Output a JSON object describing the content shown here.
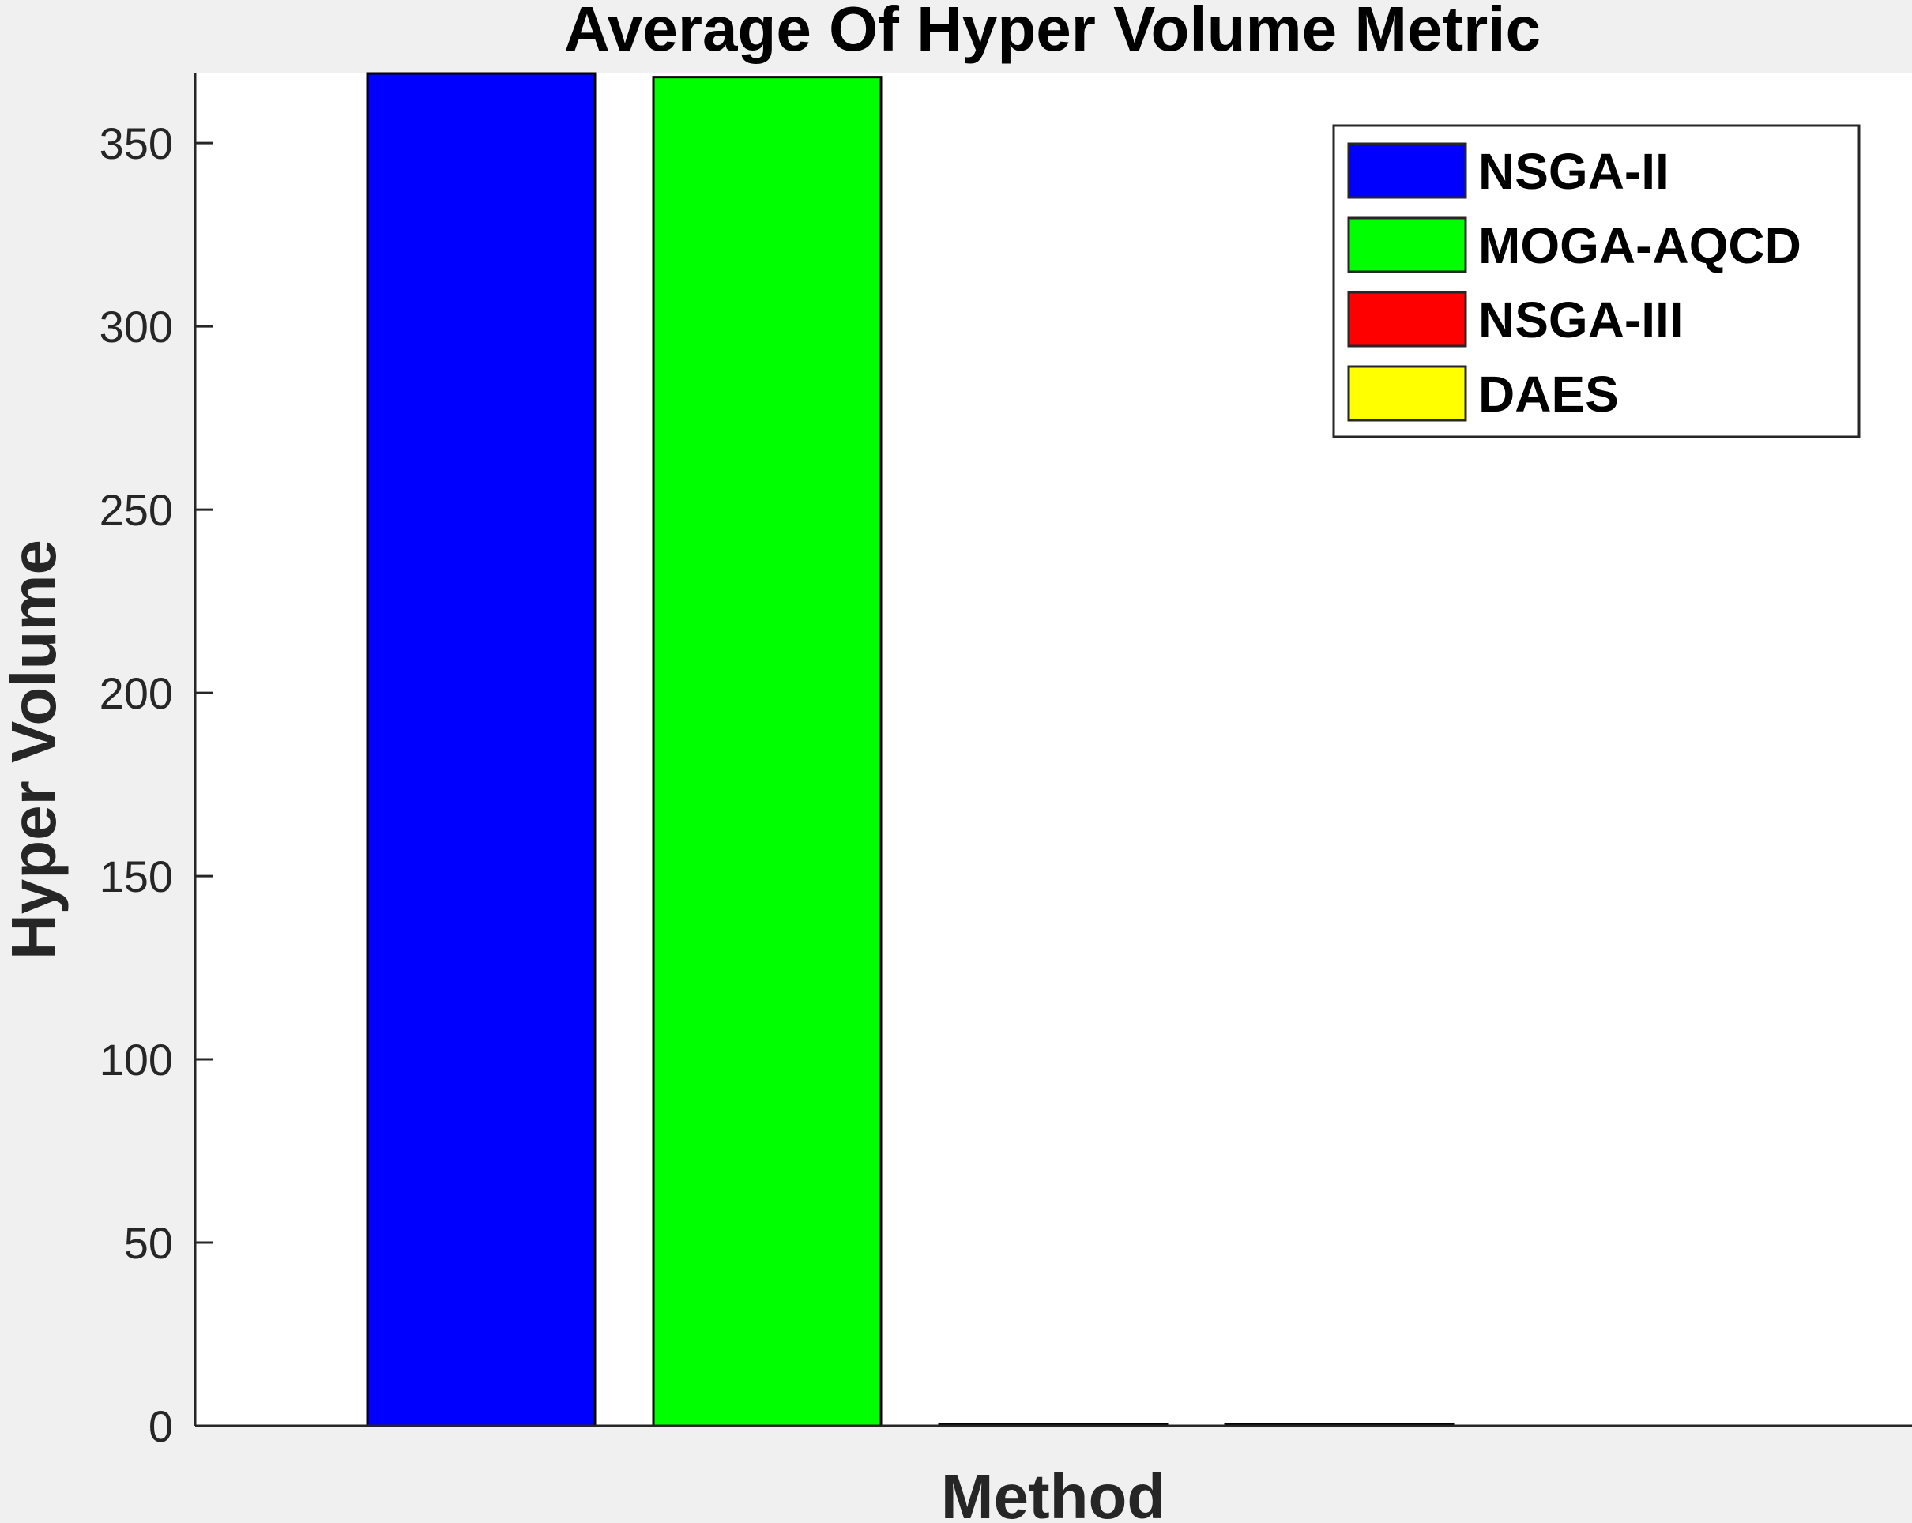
{
  "chart_data": {
    "type": "bar",
    "title": "Average Of Hyper Volume Metric",
    "xlabel": "Method",
    "ylabel": "Hyper Volume",
    "ylim": [
      0,
      369
    ],
    "yticks": [
      0,
      50,
      100,
      150,
      200,
      250,
      300,
      350
    ],
    "grid": false,
    "legend_position": "top-right",
    "series": [
      {
        "name": "NSGA-II",
        "value": 369,
        "color": "#0000ff"
      },
      {
        "name": "MOGA-AQCD",
        "value": 368,
        "color": "#00ff00"
      },
      {
        "name": "NSGA-III",
        "value": 0.3,
        "color": "#ff0000"
      },
      {
        "name": "DAES",
        "value": 0.4,
        "color": "#ffff00"
      }
    ]
  }
}
